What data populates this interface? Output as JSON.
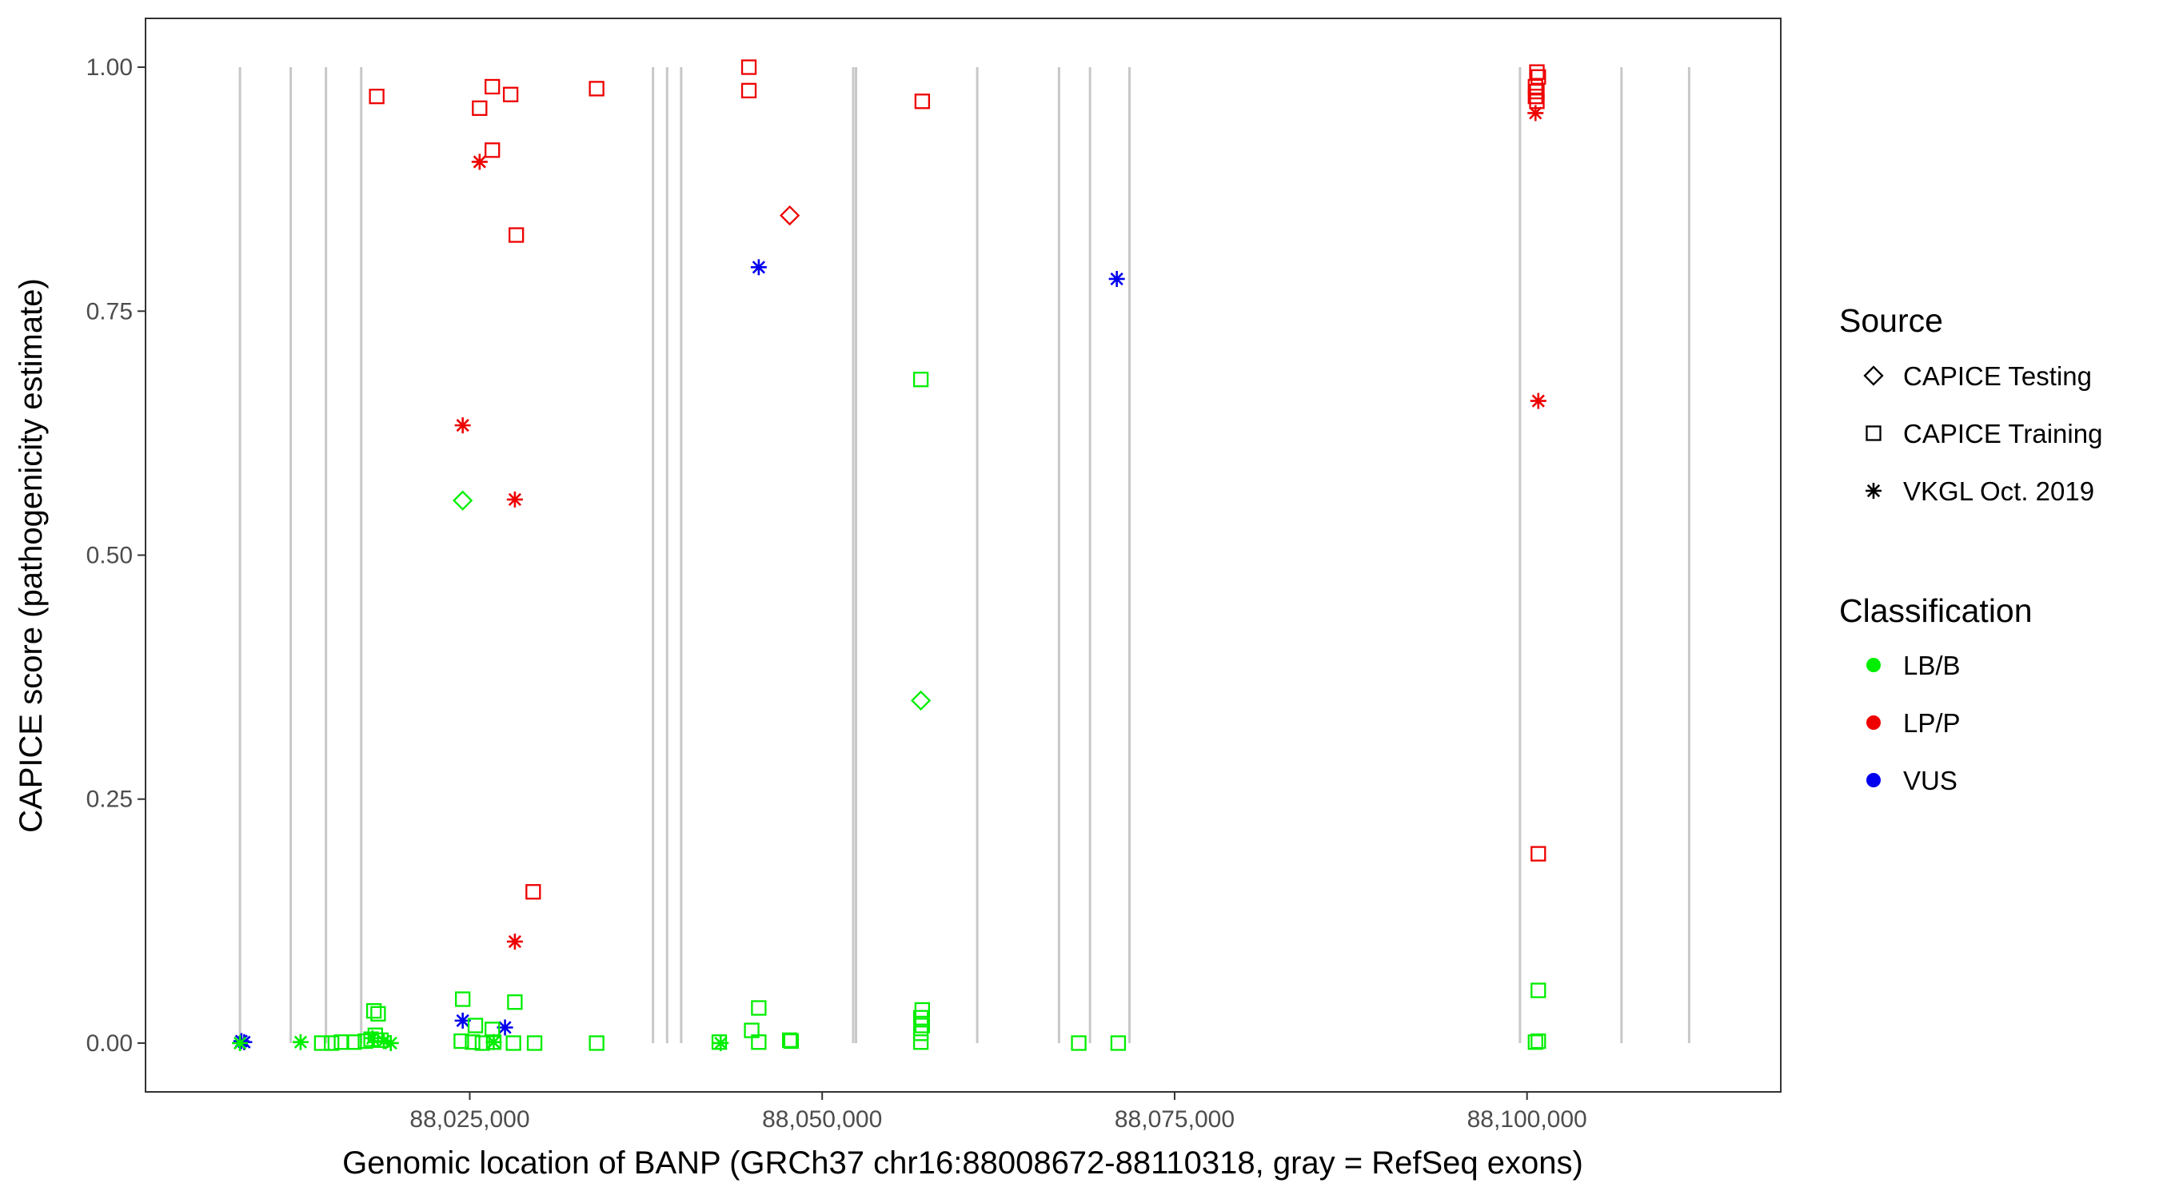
{
  "chart_data": {
    "type": "scatter",
    "xlabel": "Genomic location of BANP (GRCh37 chr16:88008672-88110318, gray = RefSeq exons)",
    "ylabel": "CAPICE score (pathogenicity estimate)",
    "xlim": [
      88002000,
      88118000
    ],
    "ylim": [
      -0.05,
      1.05
    ],
    "x_ticks": [
      88025000,
      88050000,
      88075000,
      88100000
    ],
    "x_tick_labels": [
      "88,025,000",
      "88,050,000",
      "88,075,000",
      "88,100,000"
    ],
    "y_ticks": [
      0,
      0.25,
      0.5,
      0.75,
      1.0
    ],
    "y_tick_labels": [
      "0.00",
      "0.25",
      "0.50",
      "0.75",
      "1.00"
    ],
    "grid": false,
    "exon_lines": [
      88008700,
      88012300,
      88014800,
      88017300,
      88038000,
      88039000,
      88040000,
      88052200,
      88052400,
      88061000,
      88066800,
      88069000,
      88071800,
      88099500,
      88106700,
      88111500
    ],
    "legend": {
      "position": "right",
      "source_title": "Source",
      "source_items": [
        {
          "label": "CAPICE Testing",
          "shape": "diamond"
        },
        {
          "label": "CAPICE Training",
          "shape": "square"
        },
        {
          "label": "VKGL Oct. 2019",
          "shape": "asterisk"
        }
      ],
      "class_title": "Classification",
      "class_items": [
        {
          "label": "LB/B",
          "color": "#00ee00"
        },
        {
          "label": "LP/P",
          "color": "#ee0000"
        },
        {
          "label": "VUS",
          "color": "#0000ee"
        }
      ]
    },
    "colors": {
      "LB/B": "#00ee00",
      "LP/P": "#ee0000",
      "VUS": "#0000ee"
    },
    "series": [
      {
        "name": "CAPICE Training",
        "class": "LP/P",
        "shape": "square",
        "x": [
          88018400,
          88025700,
          88026600,
          88026600,
          88027900,
          88028300,
          88034000,
          88044800,
          88044800,
          88057100,
          88100700,
          88100800,
          88100600,
          88100700,
          88100600,
          88100700,
          88029500,
          88100800
        ],
        "y": [
          0.97,
          0.958,
          0.98,
          0.915,
          0.972,
          0.828,
          0.978,
          1.0,
          0.976,
          0.965,
          0.995,
          0.99,
          0.98,
          0.975,
          0.97,
          0.965,
          0.155,
          0.194
        ]
      },
      {
        "name": "CAPICE Testing",
        "class": "LP/P",
        "shape": "diamond",
        "x": [
          88047700
        ],
        "y": [
          0.848
        ]
      },
      {
        "name": "VKGL Oct. 2019",
        "class": "LP/P",
        "shape": "asterisk",
        "x": [
          88025700,
          88024500,
          88028200,
          88028200,
          88100600,
          88100800
        ],
        "y": [
          0.903,
          0.633,
          0.557,
          0.104,
          0.953,
          0.658
        ]
      },
      {
        "name": "VKGL Oct. 2019",
        "class": "VUS",
        "shape": "asterisk",
        "x": [
          88045500,
          88070900,
          88024500,
          88027500,
          88008800,
          88009000
        ],
        "y": [
          0.795,
          0.783,
          0.023,
          0.016,
          0.002,
          0.001
        ]
      },
      {
        "name": "CAPICE Testing",
        "class": "LB/B",
        "shape": "diamond",
        "x": [
          88024500,
          88057000
        ],
        "y": [
          0.556,
          0.351
        ]
      },
      {
        "name": "CAPICE Training",
        "class": "LB/B",
        "shape": "square",
        "x": [
          88057000,
          88018200,
          88018500,
          88018300,
          88024500,
          88028200,
          88045500,
          88045000,
          88025400,
          88026600,
          88057100,
          88057000,
          88057100,
          88057000,
          88100800,
          88014500,
          88015200,
          88015900,
          88016800,
          88017600,
          88018000,
          88018700,
          88024400,
          88025200,
          88025900,
          88026700,
          88028100,
          88029600,
          88034000,
          88042700,
          88045500,
          88047700,
          88047800,
          88057000,
          88068200,
          88071000,
          88100600,
          88100800
        ],
        "y": [
          0.68,
          0.033,
          0.03,
          0.008,
          0.045,
          0.042,
          0.036,
          0.013,
          0.018,
          0.014,
          0.034,
          0.026,
          0.018,
          0.01,
          0.054,
          0.0,
          0.0,
          0.001,
          0.001,
          0.002,
          0.004,
          0.003,
          0.002,
          0.001,
          0.0,
          0.001,
          0.0,
          0.0,
          0.0,
          0.001,
          0.001,
          0.003,
          0.002,
          0.001,
          0.0,
          0.0,
          0.001,
          0.002
        ]
      },
      {
        "name": "VKGL Oct. 2019",
        "class": "LB/B",
        "shape": "asterisk",
        "x": [
          88013000,
          88018900,
          88019400,
          88018100,
          88026700,
          88042800,
          88008700
        ],
        "y": [
          0.001,
          0.002,
          0.0,
          0.005,
          0.001,
          0.0,
          0.0
        ]
      }
    ]
  }
}
